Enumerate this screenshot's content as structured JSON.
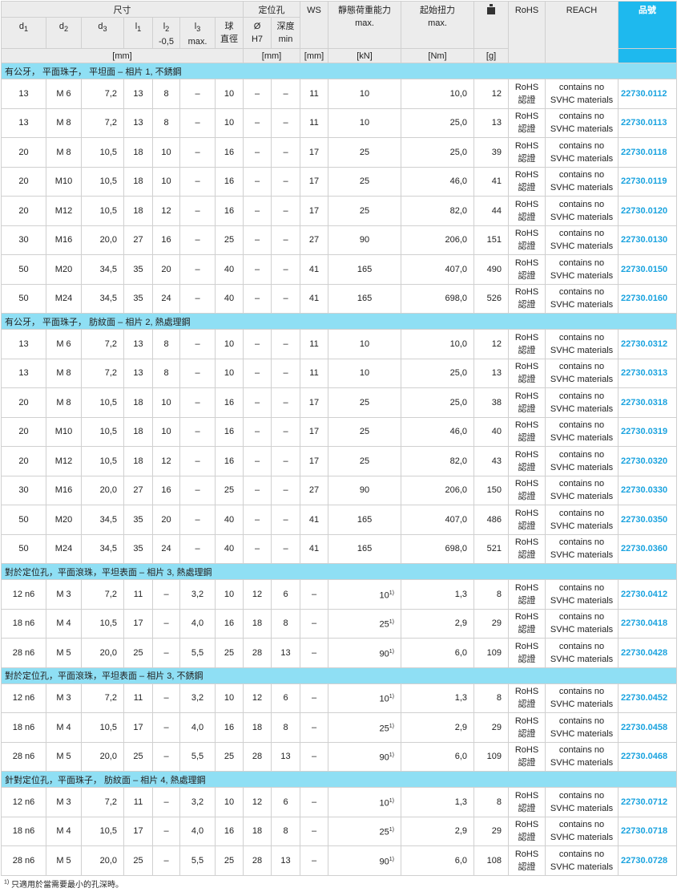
{
  "header": {
    "dim_group": "尺寸",
    "locate_group": "定位孔",
    "ws": "WS",
    "load": "靜態荷重能力",
    "load_sub": "max.",
    "torque": "起始扭力",
    "torque_sub": "max.",
    "weight_icon": "weight-icon",
    "rohs": "RoHS",
    "reach": "REACH",
    "part_no": "品號",
    "d1": "d",
    "d1s": "1",
    "d2": "d",
    "d2s": "2",
    "d3": "d",
    "d3s": "3",
    "l1": "l",
    "l1s": "1",
    "l2": "l",
    "l2s": "2",
    "l2sub": "-0,5",
    "l3": "l",
    "l3s": "3",
    "l3sub": "max.",
    "ball": "球",
    "ball2": "直徑",
    "dia": "Ø",
    "dia2": "H7",
    "depth": "深度",
    "depth2": "min",
    "u_mm": "[mm]",
    "u_mm2": "[mm]",
    "u_mm3": "[mm]",
    "u_kn": "[kN]",
    "u_nm": "[Nm]",
    "u_g": "[g]"
  },
  "sections": [
    {
      "title": "有公牙， 平面珠子， 平坦面 – 相片 1, 不銹鋼",
      "rows": [
        [
          "13",
          "M 6",
          "7,2",
          "13",
          "8",
          "–",
          "10",
          "–",
          "–",
          "11",
          "10",
          "",
          "10,0",
          "12",
          "22730.0112"
        ],
        [
          "13",
          "M 8",
          "7,2",
          "13",
          "8",
          "–",
          "10",
          "–",
          "–",
          "11",
          "10",
          "",
          "25,0",
          "13",
          "22730.0113"
        ],
        [
          "20",
          "M 8",
          "10,5",
          "18",
          "10",
          "–",
          "16",
          "–",
          "–",
          "17",
          "25",
          "",
          "25,0",
          "39",
          "22730.0118"
        ],
        [
          "20",
          "M10",
          "10,5",
          "18",
          "10",
          "–",
          "16",
          "–",
          "–",
          "17",
          "25",
          "",
          "46,0",
          "41",
          "22730.0119"
        ],
        [
          "20",
          "M12",
          "10,5",
          "18",
          "12",
          "–",
          "16",
          "–",
          "–",
          "17",
          "25",
          "",
          "82,0",
          "44",
          "22730.0120"
        ],
        [
          "30",
          "M16",
          "20,0",
          "27",
          "16",
          "–",
          "25",
          "–",
          "–",
          "27",
          "90",
          "",
          "206,0",
          "151",
          "22730.0130"
        ],
        [
          "50",
          "M20",
          "34,5",
          "35",
          "20",
          "–",
          "40",
          "–",
          "–",
          "41",
          "165",
          "",
          "407,0",
          "490",
          "22730.0150"
        ],
        [
          "50",
          "M24",
          "34,5",
          "35",
          "24",
          "–",
          "40",
          "–",
          "–",
          "41",
          "165",
          "",
          "698,0",
          "526",
          "22730.0160"
        ]
      ]
    },
    {
      "title": "有公牙， 平面珠子， 肪紋面 – 相片 2, 熱處理鋼",
      "rows": [
        [
          "13",
          "M 6",
          "7,2",
          "13",
          "8",
          "–",
          "10",
          "–",
          "–",
          "11",
          "10",
          "",
          "10,0",
          "12",
          "22730.0312"
        ],
        [
          "13",
          "M 8",
          "7,2",
          "13",
          "8",
          "–",
          "10",
          "–",
          "–",
          "11",
          "10",
          "",
          "25,0",
          "13",
          "22730.0313"
        ],
        [
          "20",
          "M 8",
          "10,5",
          "18",
          "10",
          "–",
          "16",
          "–",
          "–",
          "17",
          "25",
          "",
          "25,0",
          "38",
          "22730.0318"
        ],
        [
          "20",
          "M10",
          "10,5",
          "18",
          "10",
          "–",
          "16",
          "–",
          "–",
          "17",
          "25",
          "",
          "46,0",
          "40",
          "22730.0319"
        ],
        [
          "20",
          "M12",
          "10,5",
          "18",
          "12",
          "–",
          "16",
          "–",
          "–",
          "17",
          "25",
          "",
          "82,0",
          "43",
          "22730.0320"
        ],
        [
          "30",
          "M16",
          "20,0",
          "27",
          "16",
          "–",
          "25",
          "–",
          "–",
          "27",
          "90",
          "",
          "206,0",
          "150",
          "22730.0330"
        ],
        [
          "50",
          "M20",
          "34,5",
          "35",
          "20",
          "–",
          "40",
          "–",
          "–",
          "41",
          "165",
          "",
          "407,0",
          "486",
          "22730.0350"
        ],
        [
          "50",
          "M24",
          "34,5",
          "35",
          "24",
          "–",
          "40",
          "–",
          "–",
          "41",
          "165",
          "",
          "698,0",
          "521",
          "22730.0360"
        ]
      ]
    },
    {
      "title": "對於定位孔，平面滾珠，平坦表面 – 相片 3, 熱處理鋼",
      "rows": [
        [
          "12 n6",
          "M 3",
          "7,2",
          "11",
          "–",
          "3,2",
          "10",
          "12",
          "6",
          "–",
          "10",
          "1)",
          "1,3",
          "8",
          "22730.0412"
        ],
        [
          "18 n6",
          "M 4",
          "10,5",
          "17",
          "–",
          "4,0",
          "16",
          "18",
          "8",
          "–",
          "25",
          "1)",
          "2,9",
          "29",
          "22730.0418"
        ],
        [
          "28 n6",
          "M 5",
          "20,0",
          "25",
          "–",
          "5,5",
          "25",
          "28",
          "13",
          "–",
          "90",
          "1)",
          "6,0",
          "109",
          "22730.0428"
        ]
      ]
    },
    {
      "title": "對於定位孔，平面滾珠，平坦表面 – 相片 3, 不銹鋼",
      "rows": [
        [
          "12 n6",
          "M 3",
          "7,2",
          "11",
          "–",
          "3,2",
          "10",
          "12",
          "6",
          "–",
          "10",
          "1)",
          "1,3",
          "8",
          "22730.0452"
        ],
        [
          "18 n6",
          "M 4",
          "10,5",
          "17",
          "–",
          "4,0",
          "16",
          "18",
          "8",
          "–",
          "25",
          "1)",
          "2,9",
          "29",
          "22730.0458"
        ],
        [
          "28 n6",
          "M 5",
          "20,0",
          "25",
          "–",
          "5,5",
          "25",
          "28",
          "13",
          "–",
          "90",
          "1)",
          "6,0",
          "109",
          "22730.0468"
        ]
      ]
    },
    {
      "title": "針對定位孔，平面珠子， 肪紋面 – 相片 4, 熱處理鋼",
      "rows": [
        [
          "12 n6",
          "M 3",
          "7,2",
          "11",
          "–",
          "3,2",
          "10",
          "12",
          "6",
          "–",
          "10",
          "1)",
          "1,3",
          "8",
          "22730.0712"
        ],
        [
          "18 n6",
          "M 4",
          "10,5",
          "17",
          "–",
          "4,0",
          "16",
          "18",
          "8",
          "–",
          "25",
          "1)",
          "2,9",
          "29",
          "22730.0718"
        ],
        [
          "28 n6",
          "M 5",
          "20,0",
          "25",
          "–",
          "5,5",
          "25",
          "28",
          "13",
          "–",
          "90",
          "1)",
          "6,0",
          "108",
          "22730.0728"
        ]
      ]
    }
  ],
  "rohs_cell": [
    "RoHS",
    "認證"
  ],
  "reach_cell": [
    "contains no",
    "SVHC materials"
  ],
  "footnote": {
    "mark": "1)",
    "text": " 只適用於當需要最小的孔深時。"
  },
  "colors": {
    "header_bg": "#ececec",
    "section_bg": "#8fdff4",
    "part_header_bg": "#1eb9ee",
    "part_link": "#1aa3df"
  }
}
